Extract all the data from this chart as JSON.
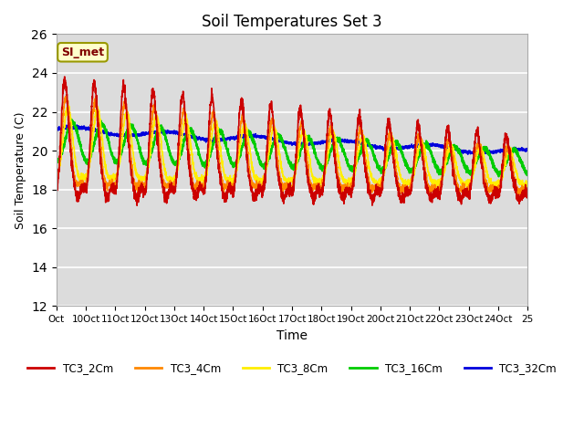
{
  "title": "Soil Temperatures Set 3",
  "xlabel": "Time",
  "ylabel": "Soil Temperature (C)",
  "ylim": [
    12,
    26
  ],
  "yticks": [
    12,
    14,
    16,
    18,
    20,
    22,
    24,
    26
  ],
  "xlim": [
    0,
    16
  ],
  "xtick_labels": [
    "Oct",
    "10Oct",
    "11Oct",
    "12Oct",
    "13Oct",
    "14Oct",
    "15Oct",
    "16Oct",
    "17Oct",
    "18Oct",
    "19Oct",
    "20Oct",
    "21Oct",
    "22Oct",
    "23Oct",
    "24Oct",
    "25"
  ],
  "xtick_positions": [
    0,
    1,
    2,
    3,
    4,
    5,
    6,
    7,
    8,
    9,
    10,
    11,
    12,
    13,
    14,
    15,
    16
  ],
  "series_colors": [
    "#cc0000",
    "#ff8800",
    "#ffee00",
    "#00cc00",
    "#0000dd"
  ],
  "series_labels": [
    "TC3_2Cm",
    "TC3_4Cm",
    "TC3_8Cm",
    "TC3_16Cm",
    "TC3_32Cm"
  ],
  "legend_label": "SI_met",
  "bg_color": "#dcdcdc",
  "title_fontsize": 12
}
